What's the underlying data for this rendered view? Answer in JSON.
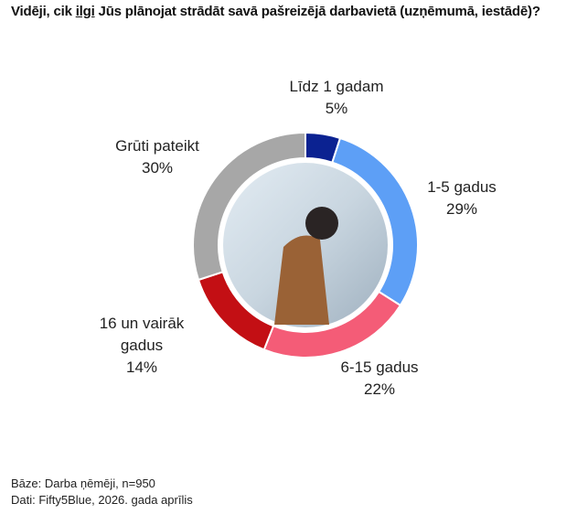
{
  "chart_data": {
    "type": "donut",
    "title": [
      "Vidēji, cik ",
      "ilgi",
      " Jūs plānojat strādāt savā pašreizējā darbavietā (uzņēmumā, iestādē)?"
    ],
    "categories": [
      "Līdz 1 gadam",
      "1-5 gadus",
      "6-15 gadus",
      "16 un vairāk gadus",
      "Grūti pateikt"
    ],
    "values": [
      5,
      29,
      22,
      14,
      30
    ],
    "value_labels": [
      "5%",
      "29%",
      "22%",
      "14%",
      "30%"
    ],
    "colors": [
      "#0b2291",
      "#5d9ff6",
      "#f45c77",
      "#c30f14",
      "#a7a7a7"
    ],
    "footnotes": [
      "Bāze: Darba ņēmēji, n=950",
      "Dati: Fifty5Blue, 2026. gada aprīlis"
    ]
  }
}
